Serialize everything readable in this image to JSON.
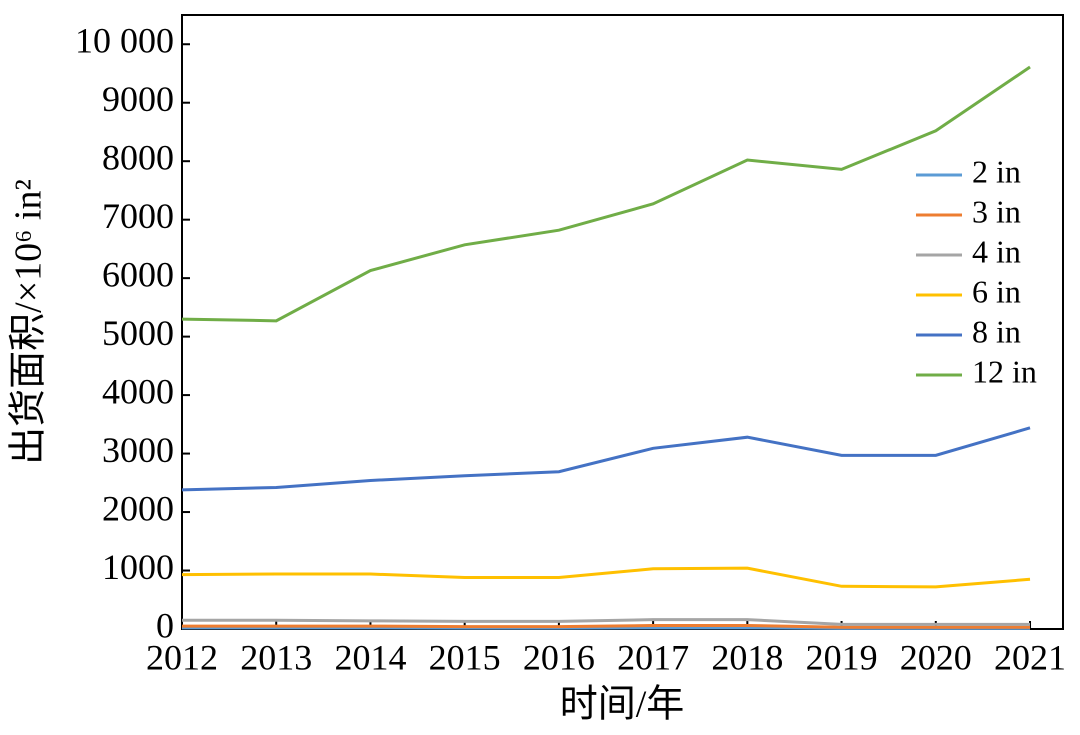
{
  "chart_data": {
    "type": "line",
    "x_label": "时间/年",
    "y_label": "出货面积/×10⁶ in²",
    "x": [
      2012,
      2013,
      2014,
      2015,
      2016,
      2017,
      2018,
      2019,
      2020,
      2021
    ],
    "xlim": [
      2012,
      2021.35
    ],
    "xticks": [
      2012,
      2013,
      2014,
      2015,
      2016,
      2017,
      2018,
      2019,
      2020,
      2021
    ],
    "ylim": [
      0,
      10500
    ],
    "yticks": [
      0,
      1000,
      2000,
      3000,
      4000,
      5000,
      6000,
      7000,
      8000,
      9000,
      {
        "value": 10000,
        "label": "10 000"
      }
    ],
    "legend": "upper right",
    "series": [
      {
        "name": "2 in",
        "color": "#5b9bd5",
        "values": [
          20,
          20,
          20,
          15,
          15,
          20,
          20,
          10,
          10,
          10
        ]
      },
      {
        "name": "3 in",
        "color": "#ed7d31",
        "values": [
          50,
          50,
          50,
          40,
          40,
          60,
          60,
          30,
          30,
          30
        ]
      },
      {
        "name": "4 in",
        "color": "#a5a5a5",
        "values": [
          150,
          150,
          140,
          130,
          130,
          160,
          160,
          80,
          80,
          80
        ]
      },
      {
        "name": "6 in",
        "color": "#ffc000",
        "values": [
          930,
          940,
          940,
          880,
          880,
          1030,
          1040,
          730,
          720,
          850
        ]
      },
      {
        "name": "8 in",
        "color": "#4472c4",
        "values": [
          2380,
          2420,
          2540,
          2620,
          2690,
          3090,
          3280,
          2970,
          2970,
          3440
        ]
      },
      {
        "name": "12 in",
        "color": "#70ad47",
        "values": [
          5300,
          5270,
          6130,
          6570,
          6820,
          7270,
          8020,
          7860,
          8520,
          9610
        ]
      }
    ]
  }
}
